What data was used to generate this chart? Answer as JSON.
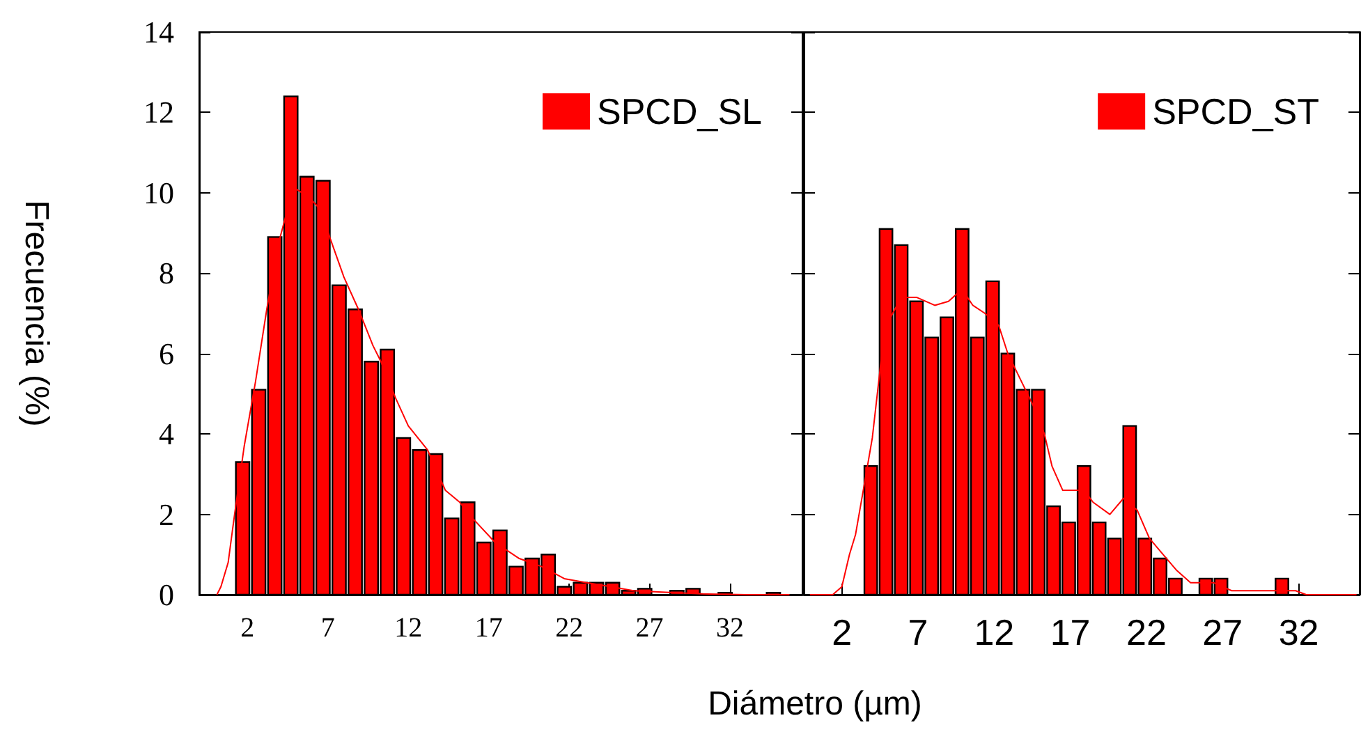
{
  "chart_data": [
    {
      "type": "histogram",
      "ylabel": "Frecuencia (%)",
      "xlabel": "Diámetro (µm)",
      "xlim": [
        -1,
        36.5
      ],
      "xticks": [
        2,
        7,
        12,
        17,
        22,
        27,
        32
      ],
      "ylim": [
        0,
        14
      ],
      "yticks": [
        0,
        2,
        4,
        6,
        8,
        10,
        12,
        14
      ],
      "grid": false,
      "legend": "top right",
      "series": [
        {
          "type": "histogram",
          "name": "SPCD_SL",
          "color": "#ff0000",
          "bins": [
            1.2,
            2.2,
            3.2,
            4.2,
            5.2,
            6.2,
            7.2,
            8.2,
            9.2,
            10.2,
            11.2,
            12.2,
            13.2,
            14.2,
            15.2,
            16.2,
            17.2,
            18.2,
            19.2,
            20.2,
            21.2,
            22.2,
            23.2,
            24.2,
            25.2,
            26.2,
            27.2,
            28.2,
            29.2,
            30.2,
            31.2,
            32.2,
            33.2,
            34.2,
            35.2
          ],
          "values": [
            3.3,
            5.1,
            8.9,
            12.4,
            10.4,
            10.3,
            7.7,
            7.1,
            5.8,
            6.1,
            3.9,
            3.6,
            3.5,
            1.9,
            2.3,
            1.3,
            1.6,
            0.7,
            0.9,
            1.0,
            0.2,
            0.3,
            0.3,
            0.3,
            0.1,
            0.15,
            0,
            0.1,
            0.15,
            0,
            0.05,
            0,
            0,
            0.05
          ]
        },
        {
          "type": "line",
          "color": "#ff0000",
          "x": [
            0.1,
            0.35,
            0.8,
            1.2,
            1.8,
            2.5,
            3.2,
            3.9,
            4.5,
            5.0,
            5.8,
            6.5,
            7.2,
            8.0,
            8.9,
            9.8,
            10.3,
            11.2,
            12.0,
            13.2,
            14.3,
            15.2,
            16.0,
            17.4,
            18.9,
            20.3,
            21.7,
            23.1,
            24.6,
            26.0,
            28.0,
            30.3,
            33.1,
            35.7
          ],
          "values": [
            0,
            0.2,
            0.8,
            2.0,
            3.7,
            5.3,
            7.1,
            8.7,
            9.6,
            10.1,
            9.9,
            9.6,
            8.8,
            7.9,
            7.1,
            6.2,
            5.8,
            4.9,
            4.2,
            3.6,
            2.6,
            2.3,
            1.9,
            1.3,
            0.9,
            0.7,
            0.4,
            0.3,
            0.2,
            0.1,
            0.06,
            0.02,
            0,
            0
          ]
        }
      ]
    },
    {
      "type": "histogram",
      "xlim": [
        -0.5,
        36
      ],
      "xticks": [
        2,
        7,
        12,
        17,
        22,
        27,
        32
      ],
      "ylim": [
        0,
        14
      ],
      "yticks": [
        0,
        2,
        4,
        6,
        8,
        10,
        12,
        14
      ],
      "grid": false,
      "legend": "top right",
      "tick_labels": "x",
      "series": [
        {
          "type": "histogram",
          "name": "SPCD_ST",
          "color": "#ff0000",
          "bins": [
            3.4,
            4.4,
            5.4,
            6.4,
            7.4,
            8.4,
            9.4,
            10.4,
            11.4,
            12.4,
            13.4,
            14.4,
            15.4,
            16.4,
            17.4,
            18.4,
            19.4,
            20.4,
            21.4,
            22.4,
            23.4,
            24.4,
            25.4,
            26.4,
            27.4,
            28.4,
            29.4,
            30.4,
            31.4
          ],
          "values": [
            3.2,
            9.1,
            8.7,
            7.3,
            6.4,
            6.9,
            9.1,
            6.4,
            7.8,
            6.0,
            5.1,
            5.1,
            2.2,
            1.8,
            3.2,
            1.8,
            1.4,
            4.2,
            1.4,
            0.9,
            0.4,
            0,
            0.4,
            0.4,
            0,
            0,
            0,
            0.4
          ]
        },
        {
          "type": "line",
          "color": "#ff0000",
          "x": [
            -0.1,
            1.4,
            2.0,
            2.5,
            2.9,
            3.5,
            4.0,
            4.6,
            5.2,
            5.9,
            6.9,
            8.1,
            9.0,
            9.9,
            10.6,
            11.4,
            12.3,
            12.9,
            13.8,
            14.7,
            15.3,
            15.8,
            16.5,
            17.9,
            18.5,
            19.6,
            20.5,
            21.4,
            22.2,
            23.1,
            24.0,
            24.9,
            26.4,
            27.6,
            31.8,
            32.5,
            35.8
          ],
          "values": [
            0,
            0,
            0.2,
            1.0,
            1.5,
            2.8,
            3.9,
            5.9,
            6.9,
            7.4,
            7.4,
            7.2,
            7.3,
            7.6,
            7.2,
            7.0,
            6.7,
            6.0,
            5.3,
            4.6,
            4.0,
            3.2,
            2.6,
            2.6,
            2.3,
            2.0,
            2.4,
            2.1,
            1.4,
            1.0,
            0.6,
            0.3,
            0.3,
            0.1,
            0.1,
            0,
            0
          ]
        }
      ]
    }
  ]
}
